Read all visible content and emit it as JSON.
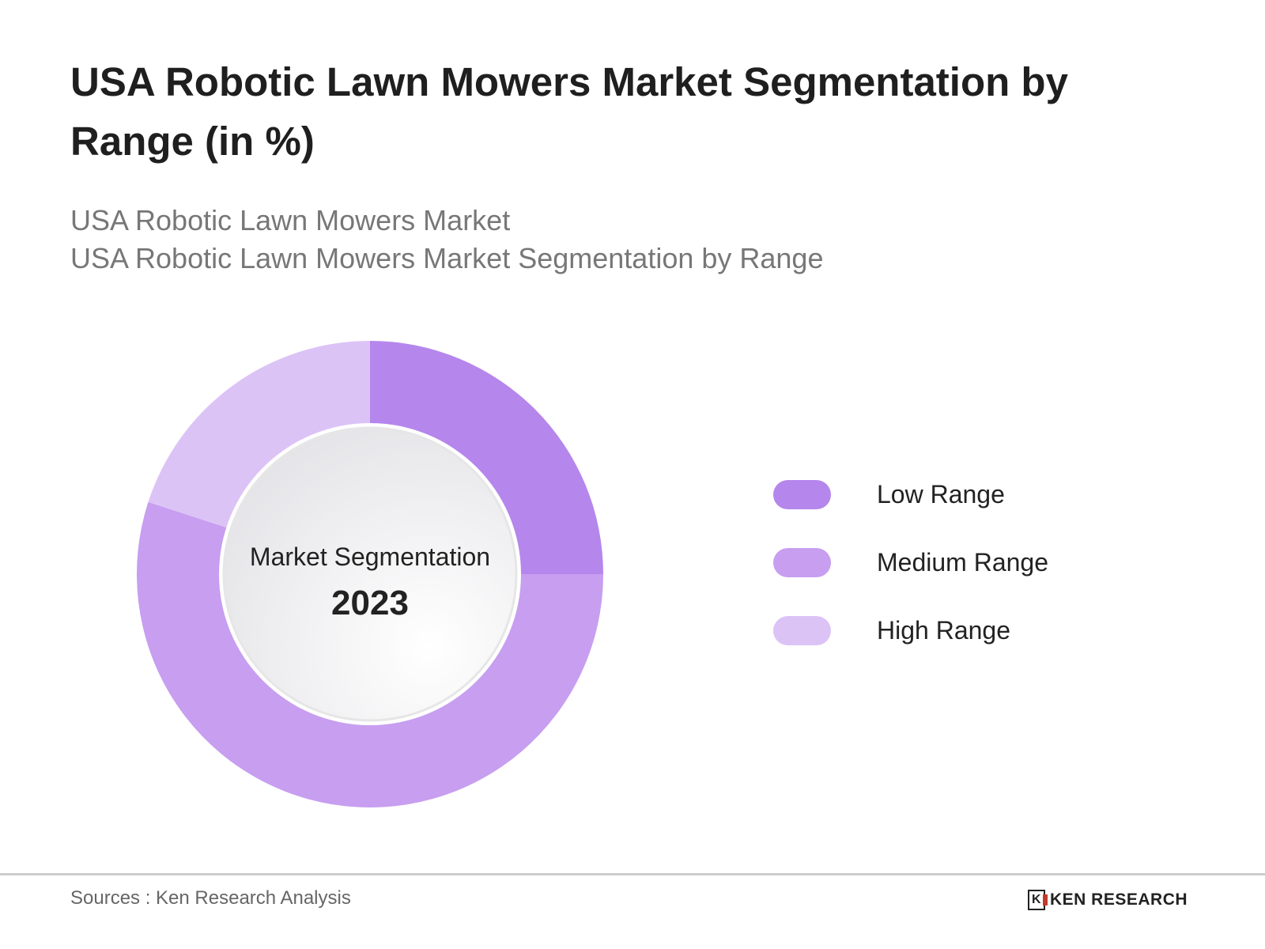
{
  "title": "USA Robotic Lawn Mowers Market Segmentation by Range (in %)",
  "subtitle_lines": [
    "USA Robotic Lawn Mowers Market",
    "USA Robotic Lawn Mowers Market Segmentation by Range"
  ],
  "chart_data": {
    "type": "pie",
    "variant": "donut",
    "categories": [
      "Low Range",
      "Medium Range",
      "High Range"
    ],
    "values": [
      25,
      55,
      20
    ],
    "colors": [
      "#b586ec",
      "#c79ef0",
      "#dcc3f6"
    ],
    "center_label": "Market Segmentation",
    "center_year": "2023",
    "legend_position": "right"
  },
  "footer": {
    "source": "Sources : Ken Research Analysis",
    "logo_text": "KEN RESEARCH"
  }
}
